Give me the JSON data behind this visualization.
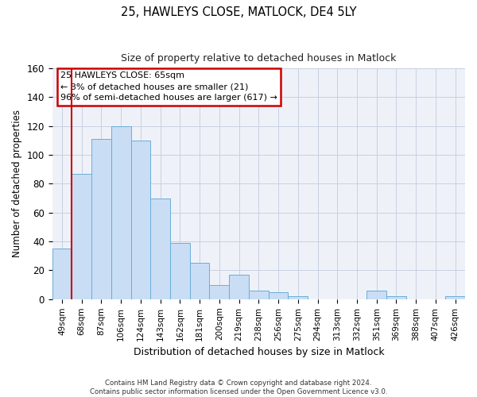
{
  "title": "25, HAWLEYS CLOSE, MATLOCK, DE4 5LY",
  "subtitle": "Size of property relative to detached houses in Matlock",
  "xlabel": "Distribution of detached houses by size in Matlock",
  "ylabel": "Number of detached properties",
  "bar_labels": [
    "49sqm",
    "68sqm",
    "87sqm",
    "106sqm",
    "124sqm",
    "143sqm",
    "162sqm",
    "181sqm",
    "200sqm",
    "219sqm",
    "238sqm",
    "256sqm",
    "275sqm",
    "294sqm",
    "313sqm",
    "332sqm",
    "351sqm",
    "369sqm",
    "388sqm",
    "407sqm",
    "426sqm"
  ],
  "bar_values": [
    35,
    87,
    111,
    120,
    110,
    70,
    39,
    25,
    10,
    17,
    6,
    5,
    2,
    0,
    0,
    0,
    6,
    2,
    0,
    0,
    2
  ],
  "bar_color": "#c9ddf5",
  "bar_edge_color": "#6baed6",
  "ylim": [
    0,
    160
  ],
  "yticks": [
    0,
    20,
    40,
    60,
    80,
    100,
    120,
    140,
    160
  ],
  "vline_color": "#cc0000",
  "annotation_title": "25 HAWLEYS CLOSE: 65sqm",
  "annotation_line1": "← 3% of detached houses are smaller (21)",
  "annotation_line2": "96% of semi-detached houses are larger (617) →",
  "annotation_box_edge_color": "#cc0000",
  "footer_line1": "Contains HM Land Registry data © Crown copyright and database right 2024.",
  "footer_line2": "Contains public sector information licensed under the Open Government Licence v3.0.",
  "grid_color": "#c8d0e0",
  "bg_color": "#eef2f8",
  "fig_bg": "#ffffff"
}
